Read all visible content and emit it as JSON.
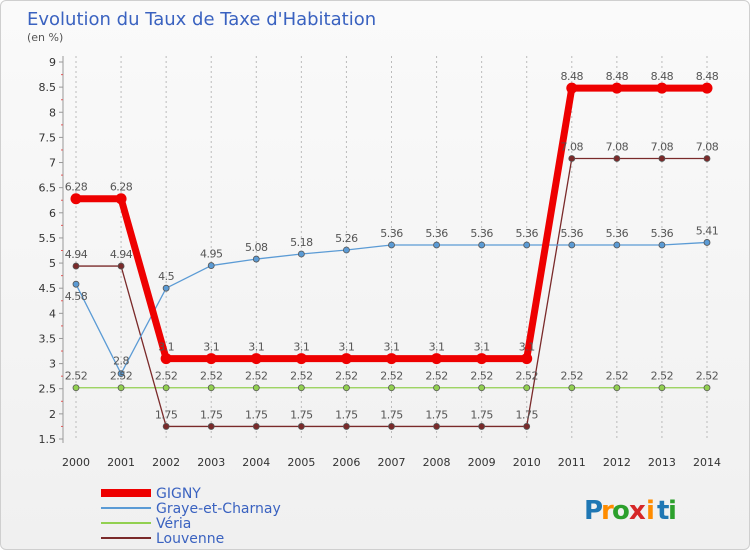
{
  "chart_data": {
    "type": "line",
    "title": "Evolution du Taux de Taxe d'Habitation",
    "subtitle": "(en %)",
    "x": [
      "2000",
      "2001",
      "2002",
      "2003",
      "2004",
      "2005",
      "2006",
      "2007",
      "2008",
      "2009",
      "2010",
      "2011",
      "2012",
      "2013",
      "2014"
    ],
    "y_ticks": [
      "1.5",
      "2",
      "2.5",
      "3",
      "3.5",
      "4",
      "4.5",
      "5",
      "5.5",
      "6",
      "6.5",
      "7",
      "7.5",
      "8",
      "8.5",
      "9"
    ],
    "ylim": [
      1.5,
      9
    ],
    "grid": "vertical",
    "legend_position": "bottom-left",
    "series": [
      {
        "name": "GIGNY",
        "color": "#ee0000",
        "values": [
          6.28,
          6.28,
          3.1,
          3.1,
          3.1,
          3.1,
          3.1,
          3.1,
          3.1,
          3.1,
          3.1,
          8.48,
          8.48,
          8.48,
          8.48
        ],
        "labels": [
          "6.28",
          "6.28",
          "3.1",
          "3.1",
          "3.1",
          "3.1",
          "3.1",
          "3.1",
          "3.1",
          "3.1",
          "3.1",
          "8.48",
          "8.48",
          "8.48",
          "8.48"
        ]
      },
      {
        "name": "Graye-et-Charnay",
        "color": "#5b9bd5",
        "values": [
          4.58,
          2.8,
          4.5,
          4.95,
          5.08,
          5.18,
          5.26,
          5.36,
          5.36,
          5.36,
          5.36,
          5.36,
          5.36,
          5.36,
          5.41
        ],
        "labels": [
          "4.58",
          "2.8",
          "4.5",
          "4.95",
          "5.08",
          "5.18",
          "5.26",
          "5.36",
          "5.36",
          "5.36",
          "5.36",
          "5.36",
          "5.36",
          "5.36",
          "5.41"
        ]
      },
      {
        "name": "Véria",
        "color": "#92d050",
        "values": [
          2.52,
          2.52,
          2.52,
          2.52,
          2.52,
          2.52,
          2.52,
          2.52,
          2.52,
          2.52,
          2.52,
          2.52,
          2.52,
          2.52,
          2.52
        ],
        "labels": [
          "2.52",
          "2.52",
          "2.52",
          "2.52",
          "2.52",
          "2.52",
          "2.52",
          "2.52",
          "2.52",
          "2.52",
          "2.52",
          "2.52",
          "2.52",
          "2.52",
          "2.52"
        ]
      },
      {
        "name": "Louvenne",
        "color": "#7a2a2a",
        "values": [
          4.94,
          4.94,
          1.75,
          1.75,
          1.75,
          1.75,
          1.75,
          1.75,
          1.75,
          1.75,
          1.75,
          7.08,
          7.08,
          7.08,
          7.08
        ],
        "labels": [
          "4.94",
          "4.94",
          "1.75",
          "1.75",
          "1.75",
          "1.75",
          "1.75",
          "1.75",
          "1.75",
          "1.75",
          "1.75",
          "7.08",
          "7.08",
          "7.08",
          "7.08"
        ]
      }
    ]
  },
  "logo": {
    "text": "Proxiti",
    "letters": [
      "P",
      "r",
      "o",
      "x",
      "i",
      "t",
      "i"
    ],
    "colors": [
      "#1f77b4",
      "#ff8c00",
      "#2ca02c",
      "#d62728",
      "#ff8c00",
      "#1f77b4",
      "#2ca02c"
    ]
  }
}
